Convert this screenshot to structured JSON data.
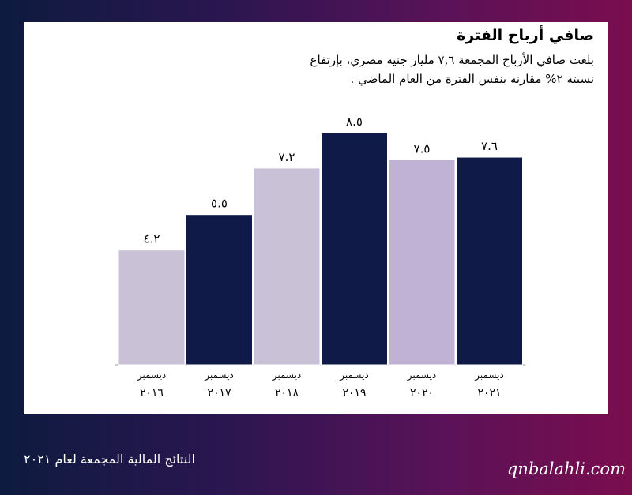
{
  "chart_data": {
    "type": "bar",
    "title": "صافي أرباح الفترة",
    "subtitle_lines": [
      "بلغت صافي الأرباح المجمعة ٧,٦ مليار جنيه مصري، بإرتفاع",
      "نسبته ٢% مقارنه بنفس الفترة من العام الماضي ."
    ],
    "categories": [
      [
        "ديسمبر",
        "٢٠١٦"
      ],
      [
        "ديسمبر",
        "٢٠١٧"
      ],
      [
        "ديسمبر",
        "٢٠١٨"
      ],
      [
        "ديسمبر",
        "٢٠١٩"
      ],
      [
        "ديسمبر",
        "٢٠٢٠"
      ],
      [
        "ديسمبر",
        "٢٠٢١"
      ]
    ],
    "values": [
      4.2,
      5.5,
      7.2,
      8.5,
      7.5,
      7.6
    ],
    "value_labels": [
      "٤.٢",
      "٥.٥",
      "٧.٢",
      "٨.٥",
      "٧.٥",
      "٧.٦"
    ],
    "colors": [
      "#c9c2d6",
      "#0f1a48",
      "#c9c2d6",
      "#0f1a48",
      "#bfb2d4",
      "#0f1a48"
    ],
    "ylim": [
      0,
      9.0
    ],
    "grid": false,
    "legend": "none"
  },
  "footer": {
    "caption": "النتائج المالية المجمعة لعام ٢٠٢١",
    "site": "qnbalahli.com"
  }
}
